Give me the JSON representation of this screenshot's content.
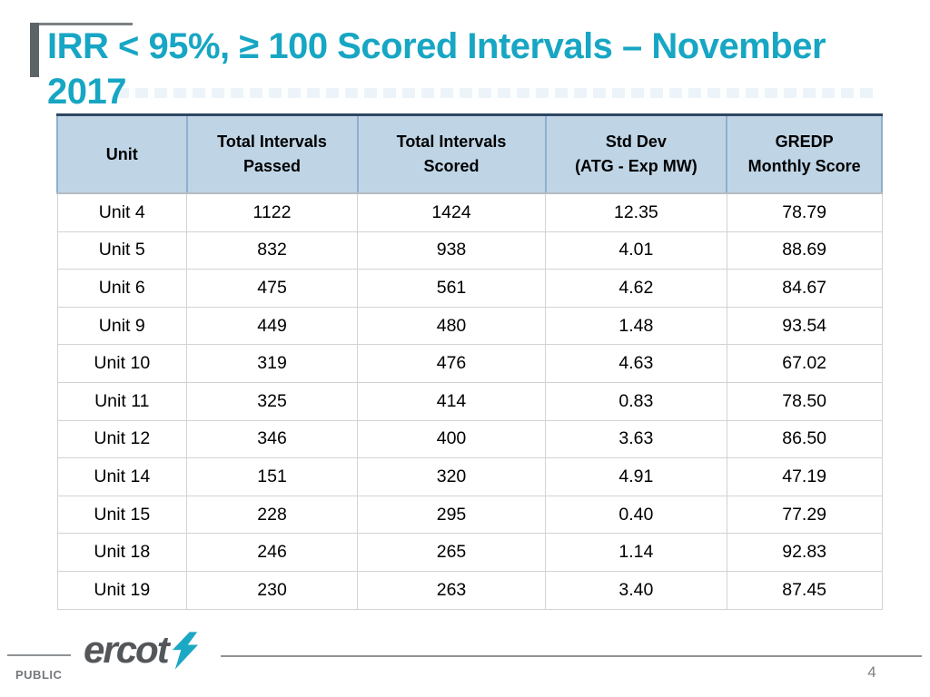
{
  "slide": {
    "title": {
      "line1": "IRR < 95%, ≥ 100 Scored Intervals – November",
      "line2": "2017"
    }
  },
  "colors": {
    "title_accent": "#17a6c4",
    "table_header_bg": "#bfd5e6",
    "logo_bolt": "#1ba8c5"
  },
  "table": {
    "columns": [
      "Unit",
      "Total Intervals\nPassed",
      "Total Intervals\nScored",
      "Std Dev\n(ATG - Exp MW)",
      "GREDP\nMonthly Score"
    ],
    "rows": [
      [
        "Unit 4",
        "1122",
        "1424",
        "12.35",
        "78.79"
      ],
      [
        "Unit 5",
        "832",
        "938",
        "4.01",
        "88.69"
      ],
      [
        "Unit 6",
        "475",
        "561",
        "4.62",
        "84.67"
      ],
      [
        "Unit 9",
        "449",
        "480",
        "1.48",
        "93.54"
      ],
      [
        "Unit 10",
        "319",
        "476",
        "4.63",
        "67.02"
      ],
      [
        "Unit 11",
        "325",
        "414",
        "0.83",
        "78.50"
      ],
      [
        "Unit 12",
        "346",
        "400",
        "3.63",
        "86.50"
      ],
      [
        "Unit 14",
        "151",
        "320",
        "4.91",
        "47.19"
      ],
      [
        "Unit 15",
        "228",
        "295",
        "0.40",
        "77.29"
      ],
      [
        "Unit 18",
        "246",
        "265",
        "1.14",
        "92.83"
      ],
      [
        "Unit 19",
        "230",
        "263",
        "3.40",
        "87.45"
      ]
    ]
  },
  "footer": {
    "logo_text": "ercot",
    "classification": "PUBLIC",
    "page_number": "4"
  }
}
